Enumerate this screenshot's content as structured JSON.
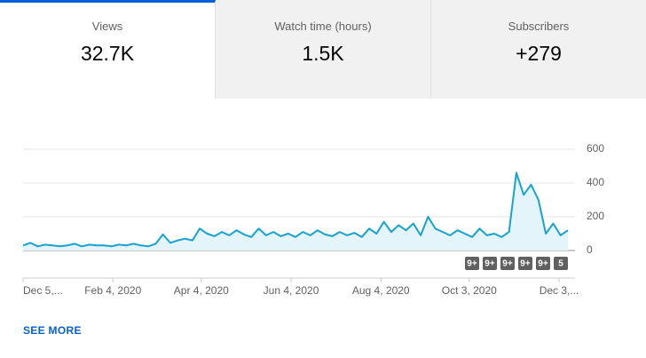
{
  "tabs": [
    {
      "label": "Views",
      "value": "32.7K",
      "selected": true
    },
    {
      "label": "Watch time (hours)",
      "value": "1.5K",
      "selected": false
    },
    {
      "label": "Subscribers",
      "value": "+279",
      "selected": false
    }
  ],
  "chart_data": {
    "type": "line",
    "x": [
      "2019-12-05",
      "2019-12-10",
      "2019-12-15",
      "2019-12-20",
      "2019-12-25",
      "2019-12-30",
      "2020-01-04",
      "2020-01-09",
      "2020-01-14",
      "2020-01-19",
      "2020-01-24",
      "2020-01-29",
      "2020-02-03",
      "2020-02-08",
      "2020-02-13",
      "2020-02-18",
      "2020-02-23",
      "2020-02-28",
      "2020-03-04",
      "2020-03-09",
      "2020-03-14",
      "2020-03-19",
      "2020-03-24",
      "2020-03-29",
      "2020-04-03",
      "2020-04-08",
      "2020-04-13",
      "2020-04-18",
      "2020-04-23",
      "2020-04-28",
      "2020-05-03",
      "2020-05-08",
      "2020-05-13",
      "2020-05-18",
      "2020-05-23",
      "2020-05-28",
      "2020-06-02",
      "2020-06-07",
      "2020-06-12",
      "2020-06-17",
      "2020-06-22",
      "2020-06-27",
      "2020-07-02",
      "2020-07-07",
      "2020-07-12",
      "2020-07-17",
      "2020-07-22",
      "2020-07-27",
      "2020-08-01",
      "2020-08-06",
      "2020-08-11",
      "2020-08-16",
      "2020-08-21",
      "2020-08-26",
      "2020-08-31",
      "2020-09-05",
      "2020-09-10",
      "2020-09-15",
      "2020-09-20",
      "2020-09-25",
      "2020-09-30",
      "2020-10-05",
      "2020-10-10",
      "2020-10-15",
      "2020-10-20",
      "2020-10-25",
      "2020-10-30",
      "2020-11-04",
      "2020-11-09",
      "2020-11-14",
      "2020-11-19",
      "2020-11-24",
      "2020-11-29",
      "2020-12-04",
      "2020-12-09"
    ],
    "series": [
      {
        "name": "Views",
        "color": "#17a2cf",
        "values": [
          30,
          45,
          25,
          35,
          30,
          25,
          30,
          40,
          25,
          35,
          30,
          30,
          25,
          35,
          30,
          40,
          30,
          25,
          40,
          95,
          45,
          60,
          70,
          60,
          130,
          100,
          85,
          110,
          90,
          120,
          95,
          80,
          130,
          90,
          110,
          85,
          100,
          80,
          110,
          90,
          120,
          95,
          85,
          110,
          90,
          105,
          80,
          130,
          100,
          170,
          110,
          150,
          120,
          160,
          90,
          200,
          130,
          110,
          90,
          120,
          100,
          80,
          130,
          90,
          100,
          80,
          110,
          460,
          330,
          390,
          300,
          100,
          160,
          90,
          120
        ]
      }
    ],
    "xlim": [
      "2019-12-05",
      "2020-12-09"
    ],
    "xticks": [
      {
        "value": "2019-12-05",
        "label": "Dec 5,..."
      },
      {
        "value": "2020-02-04",
        "label": "Feb 4, 2020"
      },
      {
        "value": "2020-04-04",
        "label": "Apr 4, 2020"
      },
      {
        "value": "2020-06-04",
        "label": "Jun 4, 2020"
      },
      {
        "value": "2020-08-04",
        "label": "Aug 4, 2020"
      },
      {
        "value": "2020-10-03",
        "label": "Oct 3, 2020"
      },
      {
        "value": "2020-12-03",
        "label": "Dec 3,..."
      }
    ],
    "ylim": [
      0,
      600
    ],
    "yticks": [
      0,
      200,
      400,
      600
    ],
    "grid": true,
    "annotations": [
      "9+",
      "9+",
      "9+",
      "9+",
      "9+",
      "5"
    ]
  },
  "link": "SEE MORE"
}
